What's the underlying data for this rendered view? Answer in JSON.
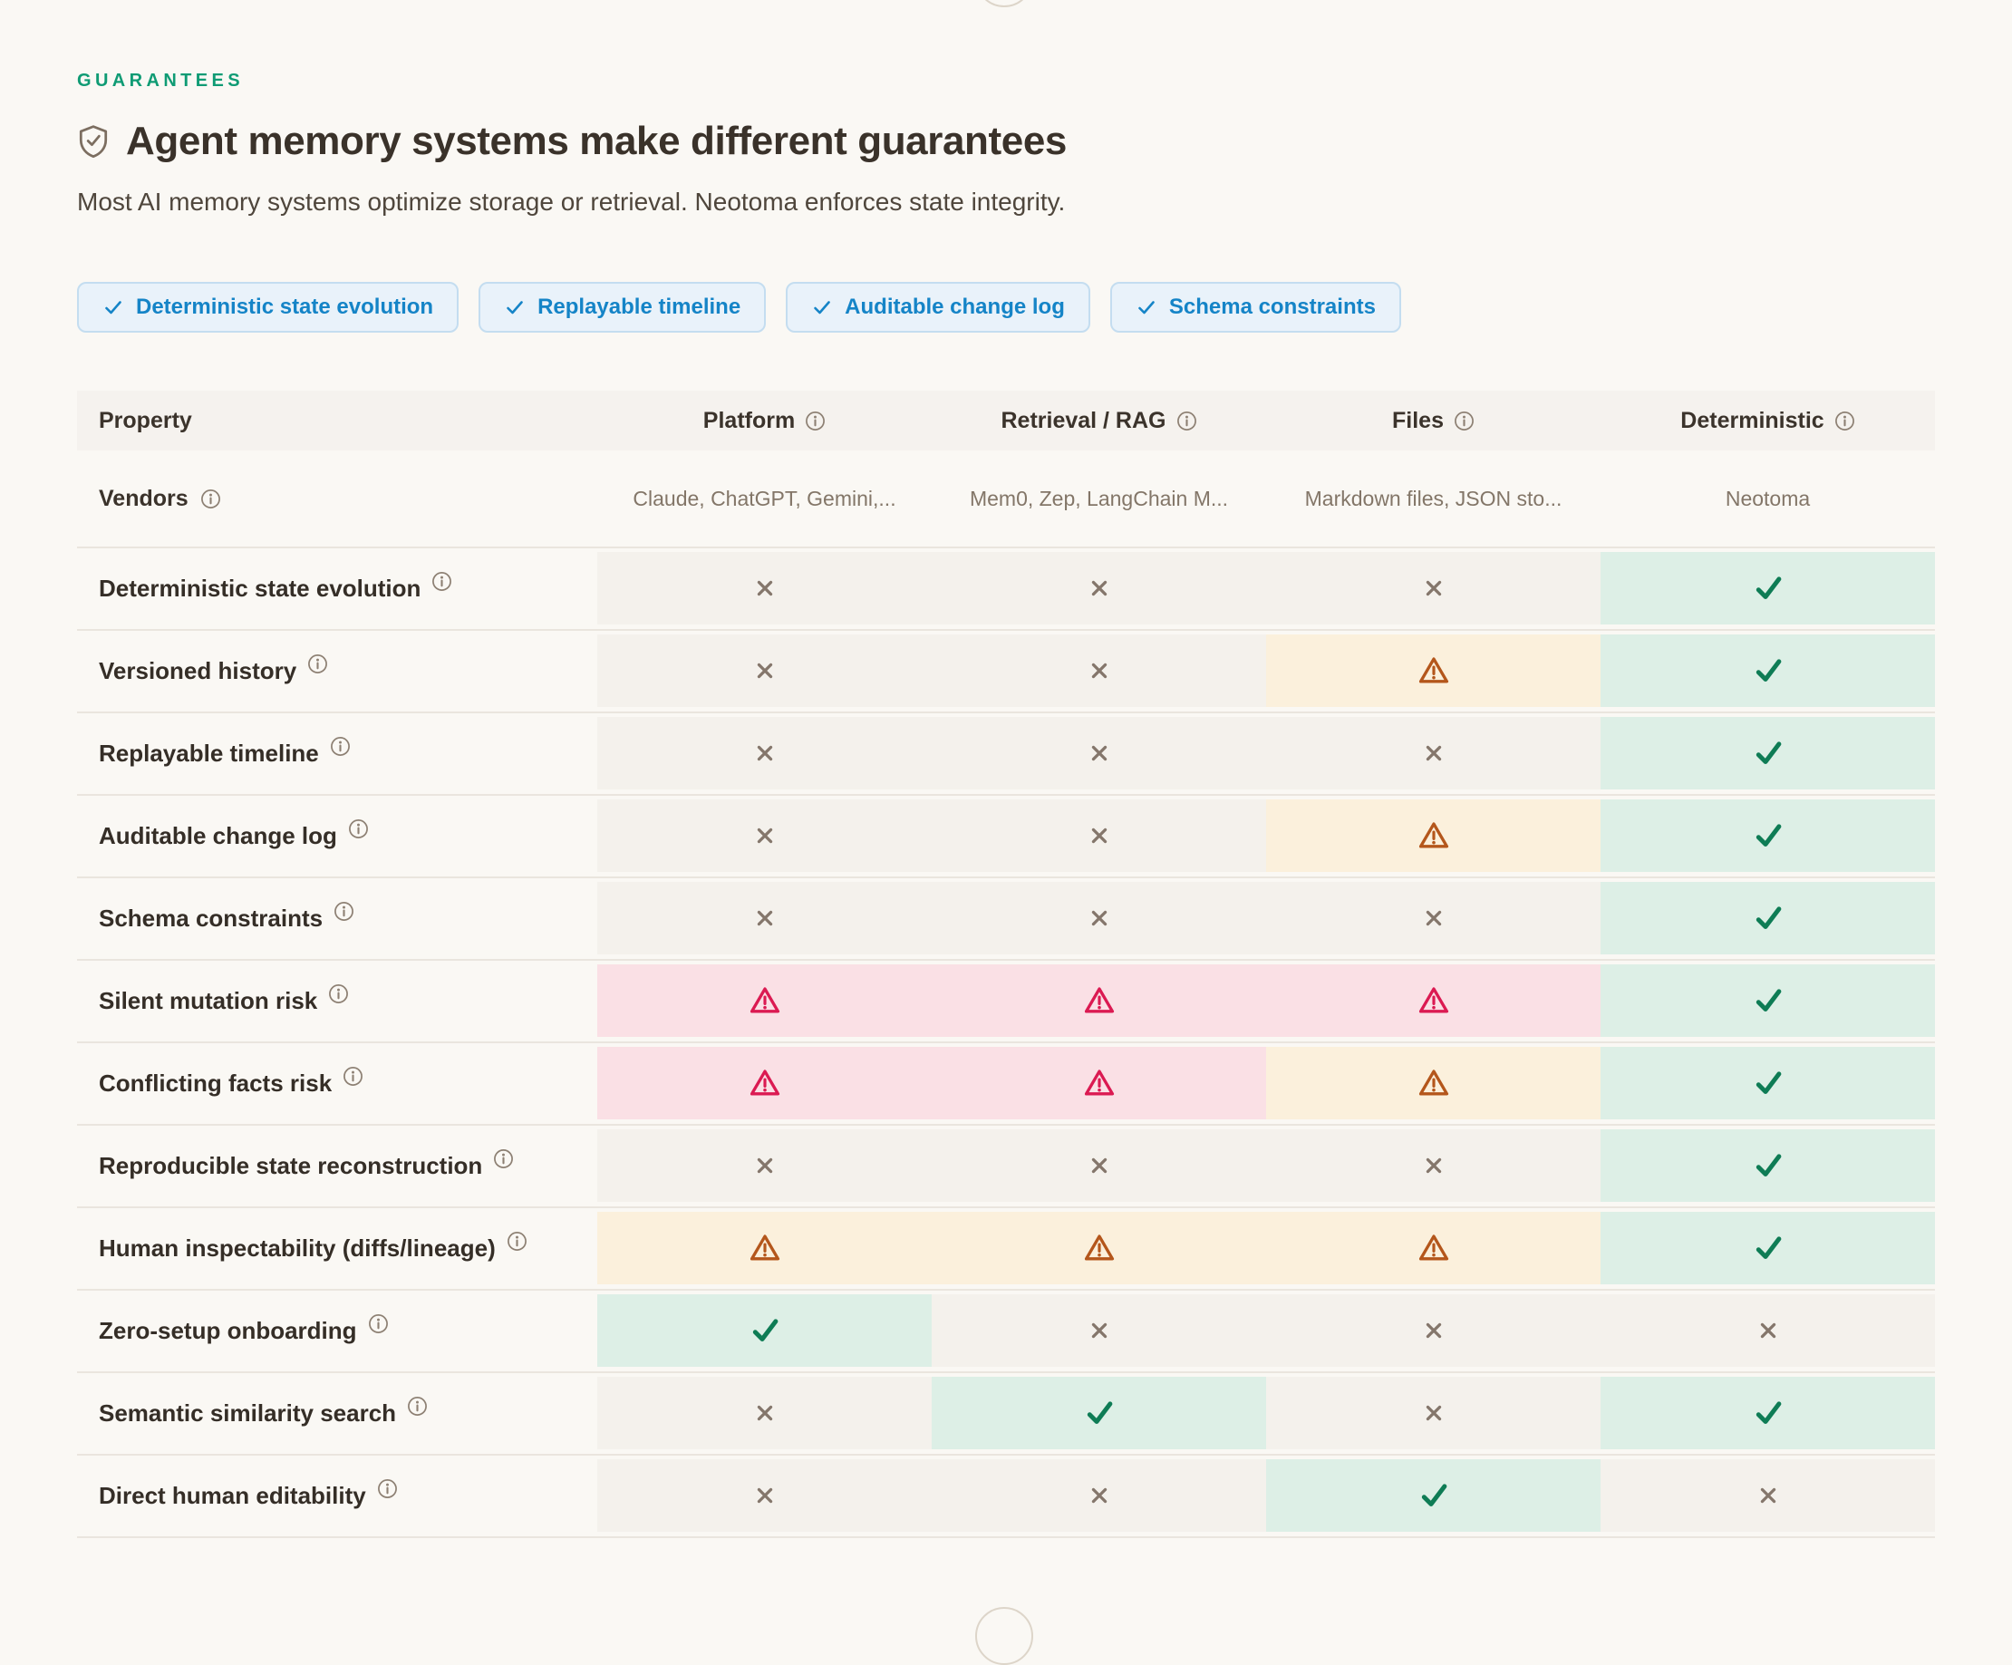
{
  "header": {
    "eyebrow": "GUARANTEES",
    "title": "Agent memory systems make different guarantees",
    "subtitle": "Most AI memory systems optimize storage or retrieval. Neotoma enforces state integrity."
  },
  "chips": [
    {
      "label": "Deterministic state evolution"
    },
    {
      "label": "Replayable timeline"
    },
    {
      "label": "Auditable change log"
    },
    {
      "label": "Schema constraints"
    }
  ],
  "table": {
    "columns": [
      {
        "label": "Property",
        "info": false
      },
      {
        "label": "Platform",
        "info": true
      },
      {
        "label": "Retrieval / RAG",
        "info": true
      },
      {
        "label": "Files",
        "info": true
      },
      {
        "label": "Deterministic",
        "info": true
      }
    ],
    "vendors_row": {
      "label": "Vendors",
      "values": [
        "Claude, ChatGPT, Gemini,...",
        "Mem0, Zep, LangChain M...",
        "Markdown files, JSON sto...",
        "Neotoma"
      ]
    },
    "rows": [
      {
        "property": "Deterministic state evolution",
        "marks": [
          "no",
          "no",
          "no",
          "yes"
        ]
      },
      {
        "property": "Versioned history",
        "marks": [
          "no",
          "no",
          "warn",
          "yes"
        ]
      },
      {
        "property": "Replayable timeline",
        "marks": [
          "no",
          "no",
          "no",
          "yes"
        ]
      },
      {
        "property": "Auditable change log",
        "marks": [
          "no",
          "no",
          "warn",
          "yes"
        ]
      },
      {
        "property": "Schema constraints",
        "marks": [
          "no",
          "no",
          "no",
          "yes"
        ]
      },
      {
        "property": "Silent mutation risk",
        "marks": [
          "danger",
          "danger",
          "danger",
          "yes"
        ]
      },
      {
        "property": "Conflicting facts risk",
        "marks": [
          "danger",
          "danger",
          "warn",
          "yes"
        ]
      },
      {
        "property": "Reproducible state reconstruction",
        "marks": [
          "no",
          "no",
          "no",
          "yes"
        ]
      },
      {
        "property": "Human inspectability (diffs/lineage)",
        "marks": [
          "warn",
          "warn",
          "warn",
          "yes"
        ]
      },
      {
        "property": "Zero-setup onboarding",
        "marks": [
          "yes",
          "no",
          "no",
          "no"
        ]
      },
      {
        "property": "Semantic similarity search",
        "marks": [
          "no",
          "yes",
          "no",
          "yes"
        ]
      },
      {
        "property": "Direct human editability",
        "marks": [
          "no",
          "no",
          "yes",
          "no"
        ]
      }
    ]
  },
  "colors": {
    "accent_green": "#0f9b74",
    "chip_blue": "#1584c7",
    "check_green": "#0e7c55",
    "x_gray": "#84766b",
    "warn_orange": "#b4561b",
    "danger_red": "#db1a52",
    "cell_success_bg": "#ddefe6",
    "cell_warn_bg": "#fbf0dc",
    "cell_danger_bg": "#fae0e5",
    "cell_neutral_bg": "#f4f1ec"
  }
}
